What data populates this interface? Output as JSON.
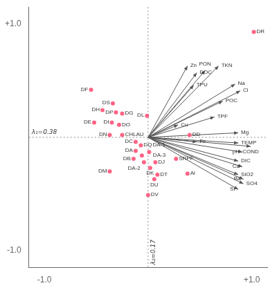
{
  "chart_data": {
    "type": "scatter",
    "xlim": [
      -1.15,
      1.15
    ],
    "ylim": [
      -1.15,
      1.15
    ],
    "xticks": [
      {
        "value": -1.0,
        "label": "-1.0"
      },
      {
        "value": 1.0,
        "label": "+1.0"
      }
    ],
    "yticks": [
      {
        "value": -1.0,
        "label": "-1.0"
      },
      {
        "value": 1.0,
        "label": "+1.0"
      }
    ],
    "grid": false,
    "annotations": [
      "λ₁=0.38",
      "λ₂=0.17"
    ],
    "arrow_origin": [
      0,
      0
    ],
    "points": [
      {
        "label": "DR",
        "x": 1.02,
        "y": 0.93
      },
      {
        "label": "DF",
        "x": -0.55,
        "y": 0.42
      },
      {
        "label": "DS",
        "x": -0.34,
        "y": 0.3
      },
      {
        "label": "DH",
        "x": -0.44,
        "y": 0.24
      },
      {
        "label": "DP",
        "x": -0.31,
        "y": 0.22
      },
      {
        "label": "DG",
        "x": -0.25,
        "y": 0.21
      },
      {
        "label": "DE",
        "x": -0.52,
        "y": 0.13
      },
      {
        "label": "DI",
        "x": -0.35,
        "y": 0.13
      },
      {
        "label": "DO",
        "x": -0.28,
        "y": 0.11
      },
      {
        "label": "DN",
        "x": -0.37,
        "y": 0.02
      },
      {
        "label": "CHLAU",
        "x": -0.25,
        "y": 0.02
      },
      {
        "label": "DL",
        "x": -0.01,
        "y": 0.19
      },
      {
        "label": "DD",
        "x": 0.4,
        "y": 0.02
      },
      {
        "label": "DC",
        "x": -0.12,
        "y": -0.04
      },
      {
        "label": "DQ",
        "x": -0.07,
        "y": -0.07
      },
      {
        "label": "DA",
        "x": -0.12,
        "y": -0.12
      },
      {
        "label": "DA-3",
        "x": -0.06,
        "y": -0.16
      },
      {
        "label": "DB",
        "x": -0.14,
        "y": -0.19
      },
      {
        "label": "DA-1",
        "x": 0.01,
        "y": -0.13
      },
      {
        "label": "DA-2",
        "x": -0.04,
        "y": -0.22
      },
      {
        "label": "DJ",
        "x": 0.07,
        "y": -0.22
      },
      {
        "label": "DK",
        "x": 0.02,
        "y": -0.27
      },
      {
        "label": "DT",
        "x": 0.09,
        "y": -0.33
      },
      {
        "label": "DU",
        "x": 0.06,
        "y": -0.37
      },
      {
        "label": "DM",
        "x": -0.37,
        "y": -0.3
      },
      {
        "label": "SRPF",
        "x": 0.27,
        "y": -0.19
      },
      {
        "label": "Al",
        "x": 0.38,
        "y": -0.32
      },
      {
        "label": "DV",
        "x": 0.0,
        "y": -0.51
      }
    ],
    "arrows": [
      {
        "label": "Zn",
        "x": 0.38,
        "y": 0.63
      },
      {
        "label": "DOC",
        "x": 0.47,
        "y": 0.57
      },
      {
        "label": "PON",
        "x": 0.55,
        "y": 0.59
      },
      {
        "label": "TKN",
        "x": 0.68,
        "y": 0.63
      },
      {
        "label": "TPU",
        "x": 0.44,
        "y": 0.46
      },
      {
        "label": "Na",
        "x": 0.84,
        "y": 0.47
      },
      {
        "label": "Cl",
        "x": 0.89,
        "y": 0.41
      },
      {
        "label": "POC",
        "x": 0.72,
        "y": 0.32
      },
      {
        "label": "TPF",
        "x": 0.64,
        "y": 0.18
      },
      {
        "label": "Cu",
        "x": 0.29,
        "y": 0.11
      },
      {
        "label": "Mg",
        "x": 0.87,
        "y": 0.04
      },
      {
        "label": "Fe",
        "x": 0.47,
        "y": -0.04
      },
      {
        "label": "TEMP",
        "x": 0.87,
        "y": -0.05
      },
      {
        "label": "COND",
        "x": 0.99,
        "y": -0.08
      },
      {
        "label": "pH",
        "x": 0.91,
        "y": -0.13
      },
      {
        "label": "DIC",
        "x": 0.87,
        "y": -0.21
      },
      {
        "label": "Ca",
        "x": 0.91,
        "y": -0.26
      },
      {
        "label": "SiO2",
        "x": 0.87,
        "y": -0.33
      },
      {
        "label": "Ba",
        "x": 0.92,
        "y": -0.37
      },
      {
        "label": "SO4",
        "x": 0.92,
        "y": -0.41
      },
      {
        "label": "Sr",
        "x": 0.87,
        "y": -0.46
      }
    ]
  }
}
